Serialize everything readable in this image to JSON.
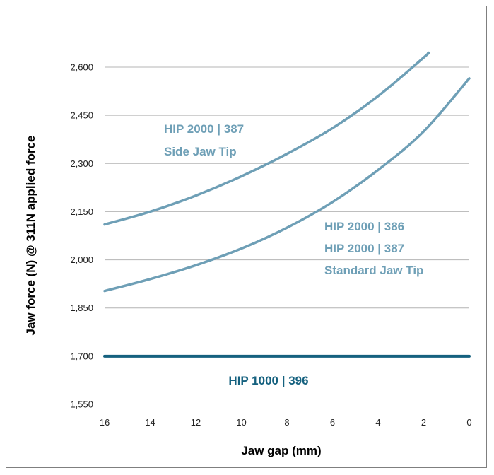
{
  "chart_data": {
    "type": "line",
    "xlabel": "Jaw gap (mm)",
    "ylabel": "Jaw force (N) @ 311N applied force",
    "xlim": [
      16,
      0
    ],
    "ylim": [
      1550,
      2650
    ],
    "x_ticks": [
      "16",
      "14",
      "12",
      "10",
      "8",
      "6",
      "4",
      "2",
      "0"
    ],
    "y_ticks": [
      "1,550",
      "1,700",
      "1,850",
      "2,000",
      "2,150",
      "2,300",
      "2,450",
      "2,600"
    ],
    "grid": true,
    "colors": {
      "light": "#6e9fb6",
      "dark": "#15617f"
    },
    "series": [
      {
        "color": "#6e9fb6",
        "x": [
          16,
          14,
          12,
          10,
          8,
          6,
          4,
          2,
          1.8
        ],
        "y": [
          2110,
          2150,
          2200,
          2260,
          2330,
          2410,
          2510,
          2630,
          2645
        ]
      },
      {
        "color": "#6e9fb6",
        "x": [
          16,
          14,
          12,
          10,
          8,
          6,
          4,
          2,
          0
        ],
        "y": [
          1903,
          1940,
          1983,
          2035,
          2100,
          2180,
          2280,
          2400,
          2565
        ]
      },
      {
        "color": "#15617f",
        "x": [
          16,
          0
        ],
        "y": [
          1700,
          1700
        ]
      }
    ],
    "annotations": [
      {
        "lines": [
          "HIP 2000 | 387",
          "Side Jaw Tip"
        ],
        "color": "#6e9fb6"
      },
      {
        "lines": [
          "HIP 2000 | 386",
          "HIP 2000 | 387",
          "Standard Jaw Tip"
        ],
        "color": "#6e9fb6"
      },
      {
        "lines": [
          "HIP 1000 | 396"
        ],
        "color": "#15617f"
      }
    ]
  }
}
